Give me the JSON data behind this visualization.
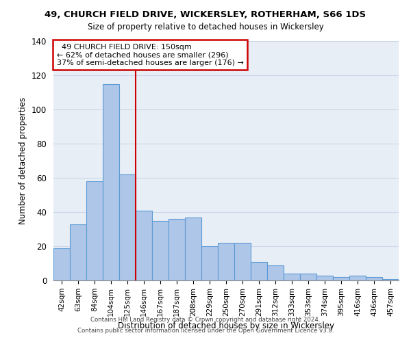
{
  "title1": "49, CHURCH FIELD DRIVE, WICKERSLEY, ROTHERHAM, S66 1DS",
  "title2": "Size of property relative to detached houses in Wickersley",
  "xlabel": "Distribution of detached houses by size in Wickersley",
  "ylabel": "Number of detached properties",
  "bar_labels": [
    "42sqm",
    "63sqm",
    "84sqm",
    "104sqm",
    "125sqm",
    "146sqm",
    "167sqm",
    "187sqm",
    "208sqm",
    "229sqm",
    "250sqm",
    "270sqm",
    "291sqm",
    "312sqm",
    "333sqm",
    "353sqm",
    "374sqm",
    "395sqm",
    "416sqm",
    "436sqm",
    "457sqm"
  ],
  "bar_values": [
    19,
    33,
    58,
    115,
    62,
    41,
    35,
    36,
    37,
    20,
    22,
    22,
    11,
    9,
    4,
    4,
    3,
    2,
    3,
    2,
    1
  ],
  "bar_color": "#aec6e8",
  "bar_edge_color": "#5b9bd5",
  "vline_index": 4.5,
  "property_line_label": "49 CHURCH FIELD DRIVE: 150sqm",
  "pct_smaller": "62% of detached houses are smaller (296)",
  "pct_larger": "37% of semi-detached houses are larger (176)",
  "annotation_box_color": "#ffffff",
  "annotation_box_edge": "#cc0000",
  "vline_color": "#cc0000",
  "grid_color": "#ccd6e8",
  "background_color": "#e8eef6",
  "footer1": "Contains HM Land Registry data © Crown copyright and database right 2024.",
  "footer2": "Contains public sector information licensed under the Open Government Licence v3.0.",
  "ylim": [
    0,
    140
  ]
}
